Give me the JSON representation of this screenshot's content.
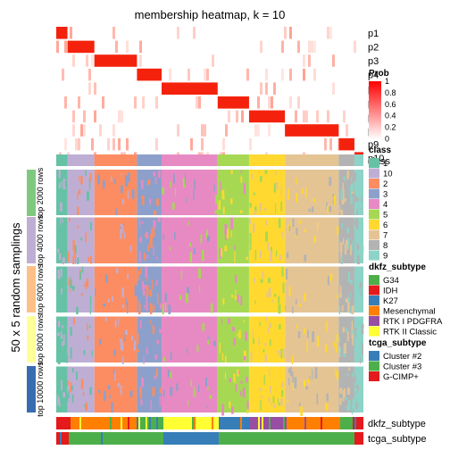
{
  "chart_data": {
    "type": "heatmap",
    "title": "membership heatmap, k = 10",
    "ylabel": "50 x 5 random samplings",
    "membership_rows": [
      "p1",
      "p2",
      "p3",
      "p4",
      "p5",
      "p6",
      "p7",
      "p8",
      "p9",
      "p10"
    ],
    "class_row_label": "class",
    "group_labels": [
      "top 2000 rows",
      "top 4000 rows",
      "top 6000 rows",
      "top 8000 rows",
      "top 10000 rows"
    ],
    "group_colors": [
      "#7FC97F",
      "#BEAED4",
      "#FDC086",
      "#FFFF99",
      "#386CB0"
    ],
    "class_order": [
      "1",
      "10",
      "2",
      "3",
      "4",
      "5",
      "6",
      "7",
      "8",
      "9"
    ],
    "class_widths": [
      2.5,
      6,
      9.5,
      5.5,
      12.5,
      7,
      8,
      12,
      3.5,
      2
    ],
    "prob_legend": {
      "title": "Prob",
      "ticks": [
        "1",
        "0.8",
        "0.6",
        "0.4",
        "0.2",
        "0"
      ],
      "colors": [
        "#FF0000",
        "#FFFFFF"
      ]
    },
    "class_legend": {
      "title": "class",
      "items": [
        {
          "label": "1",
          "color": "#66C2A5"
        },
        {
          "label": "10",
          "color": "#BEAED4"
        },
        {
          "label": "2",
          "color": "#FC8D62"
        },
        {
          "label": "3",
          "color": "#8DA0CB"
        },
        {
          "label": "4",
          "color": "#E78AC3"
        },
        {
          "label": "5",
          "color": "#A6D854"
        },
        {
          "label": "6",
          "color": "#FFD92F"
        },
        {
          "label": "7",
          "color": "#E5C494"
        },
        {
          "label": "8",
          "color": "#B3B3B3"
        },
        {
          "label": "9",
          "color": "#8DD3C7"
        }
      ]
    },
    "dkfz_legend": {
      "title": "dkfz_subtype",
      "items": [
        {
          "label": "G34",
          "color": "#4DAF4A"
        },
        {
          "label": "IDH",
          "color": "#E41A1C"
        },
        {
          "label": "K27",
          "color": "#377EB8"
        },
        {
          "label": "Mesenchymal",
          "color": "#FF7F00"
        },
        {
          "label": "RTK I PDGFRA",
          "color": "#984EA3"
        },
        {
          "label": "RTK II Classic",
          "color": "#FFFF33"
        }
      ]
    },
    "tcga_legend": {
      "title": "tcga_subtype",
      "items": [
        {
          "label": "Cluster #2",
          "color": "#377EB8"
        },
        {
          "label": "Cluster #3",
          "color": "#4DAF4A"
        },
        {
          "label": "G-CIMP+",
          "color": "#E41A1C"
        }
      ]
    },
    "annotation_rows": [
      "dkfz_subtype",
      "tcga_subtype"
    ]
  }
}
